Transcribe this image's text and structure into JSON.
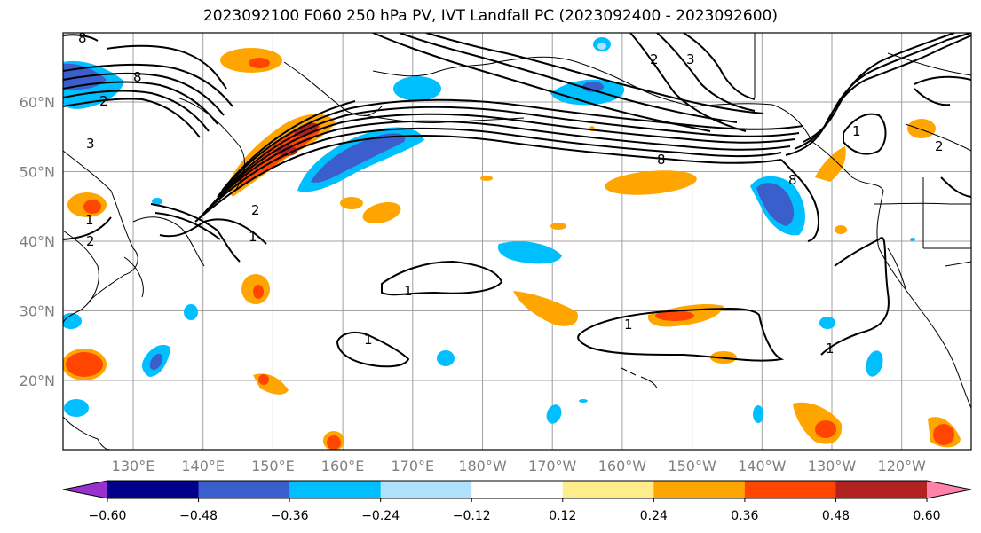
{
  "title": "2023092100 F060 250 hPa PV, IVT Landfall PC (2023092400 - 2023092600)",
  "map": {
    "lat_ticks": [
      {
        "label": "60°N",
        "lat": 60
      },
      {
        "label": "50°N",
        "lat": 50
      },
      {
        "label": "40°N",
        "lat": 40
      },
      {
        "label": "30°N",
        "lat": 30
      },
      {
        "label": "20°N",
        "lat": 20
      }
    ],
    "lon_ticks": [
      {
        "label": "130°E",
        "lon": 130
      },
      {
        "label": "140°E",
        "lon": 140
      },
      {
        "label": "150°E",
        "lon": 150
      },
      {
        "label": "160°E",
        "lon": 160
      },
      {
        "label": "170°E",
        "lon": 170
      },
      {
        "label": "180°W",
        "lon": 180
      },
      {
        "label": "170°W",
        "lon": 190
      },
      {
        "label": "160°W",
        "lon": 200
      },
      {
        "label": "150°W",
        "lon": 210
      },
      {
        "label": "140°W",
        "lon": 220
      },
      {
        "label": "130°W",
        "lon": 230
      },
      {
        "label": "120°W",
        "lon": 240
      }
    ],
    "contour_labels": [
      "8",
      "8",
      "2",
      "3",
      "1",
      "2",
      "2",
      "1",
      "1",
      "1",
      "1",
      "1",
      "2",
      "3",
      "8",
      "8",
      "1",
      "2"
    ]
  },
  "colorbar": {
    "colors": [
      "#9932cc",
      "#00008b",
      "#3a5fcd",
      "#00bfff",
      "#b0e2ff",
      "#ffffff",
      "#ffec8b",
      "#ffa500",
      "#ff4500",
      "#b22222",
      "#ff82ab"
    ],
    "tick_labels": [
      "−0.60",
      "−0.48",
      "−0.36",
      "−0.24",
      "−0.12",
      "0.12",
      "0.24",
      "0.36",
      "0.48",
      "0.60"
    ]
  }
}
